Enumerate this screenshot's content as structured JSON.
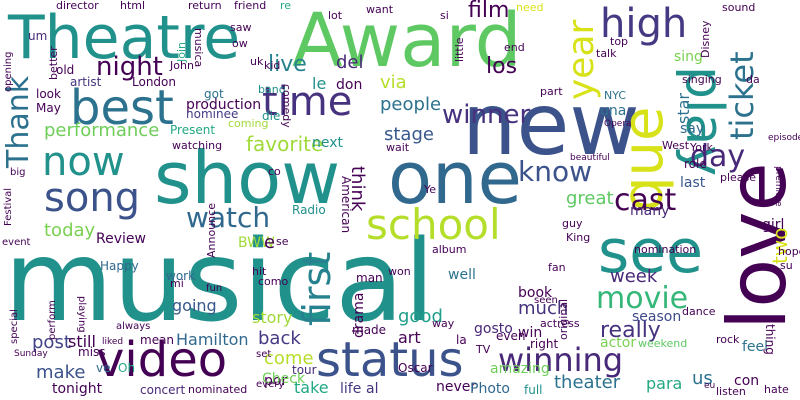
{
  "words": [
    {
      "text": "musical",
      "color": "#21918c"
    },
    {
      "text": "Award",
      "color": "#5ec962"
    },
    {
      "text": "Theatre",
      "color": "#21918c"
    },
    {
      "text": "new",
      "color": "#3b528b"
    },
    {
      "text": "show",
      "color": "#21918c"
    },
    {
      "text": "one",
      "color": "#31688e"
    },
    {
      "text": "love",
      "color": "#440154"
    },
    {
      "text": "best",
      "color": "#2c728e"
    },
    {
      "text": "status",
      "color": "#3b528b"
    },
    {
      "text": "video",
      "color": "#440154"
    },
    {
      "text": "see",
      "color": "#21918c"
    },
    {
      "text": "que",
      "color": "#d8e219"
    },
    {
      "text": "play",
      "color": "#21918c"
    },
    {
      "text": "school",
      "color": "#b5de2b"
    },
    {
      "text": "song",
      "color": "#3b528b"
    },
    {
      "text": "now",
      "color": "#21918c"
    },
    {
      "text": "time",
      "color": "#46327e"
    },
    {
      "text": "first",
      "color": "#26828e"
    },
    {
      "text": "watch",
      "color": "#31688e"
    },
    {
      "text": "high",
      "color": "#443983"
    },
    {
      "text": "day",
      "color": "#482878"
    },
    {
      "text": "ticket",
      "color": "#2c728e"
    },
    {
      "text": "year",
      "color": "#d8e219"
    },
    {
      "text": "winning",
      "color": "#482878"
    },
    {
      "text": "movie",
      "color": "#35b779"
    },
    {
      "text": "know",
      "color": "#3b528b"
    },
    {
      "text": "cast",
      "color": "#440154"
    },
    {
      "text": "Thank",
      "color": "#2c728e"
    },
    {
      "text": "winner",
      "color": "#46327e"
    },
    {
      "text": "night",
      "color": "#440154"
    },
    {
      "text": "performance",
      "color": "#6ece58"
    },
    {
      "text": "favorite",
      "color": "#a0da39"
    },
    {
      "text": "live",
      "color": "#26828e"
    },
    {
      "text": "people",
      "color": "#2c728e"
    },
    {
      "text": "stage",
      "color": "#38588c"
    },
    {
      "text": "film",
      "color": "#440154"
    },
    {
      "text": "los",
      "color": "#440154"
    },
    {
      "text": "via",
      "color": "#b5de2b"
    },
    {
      "text": "really",
      "color": "#46327e"
    },
    {
      "text": "theater",
      "color": "#2c728e"
    },
    {
      "text": "us",
      "color": "#2c728e"
    },
    {
      "text": "Hamilton",
      "color": "#31688e"
    },
    {
      "text": "today",
      "color": "#7ad151"
    },
    {
      "text": "great",
      "color": "#5ec962"
    },
    {
      "text": "post",
      "color": "#414487"
    },
    {
      "text": "still",
      "color": "#440154"
    },
    {
      "text": "come",
      "color": "#b5de2b"
    },
    {
      "text": "make",
      "color": "#3b528b"
    },
    {
      "text": "two",
      "color": "#d8e219"
    },
    {
      "text": "week",
      "color": "#482878"
    },
    {
      "text": "good",
      "color": "#1f9e89"
    },
    {
      "text": "much",
      "color": "#46327e"
    },
    {
      "text": "back",
      "color": "#443983"
    },
    {
      "text": "think",
      "color": "#440154"
    },
    {
      "text": "production",
      "color": "#440154"
    },
    {
      "text": "Review",
      "color": "#440154"
    },
    {
      "text": "tonight",
      "color": "#440154"
    },
    {
      "text": "amazing",
      "color": "#6ece58"
    },
    {
      "text": "take",
      "color": "#22a884"
    },
    {
      "text": "life",
      "color": "#443983"
    },
    {
      "text": "para",
      "color": "#22a884"
    },
    {
      "text": "story",
      "color": "#a0da39"
    },
    {
      "text": "going",
      "color": "#38588c"
    },
    {
      "text": "art",
      "color": "#440154"
    },
    {
      "text": "book",
      "color": "#440154"
    },
    {
      "text": "drama",
      "color": "#440154"
    },
    {
      "text": "del",
      "color": "#482878"
    },
    {
      "text": "le",
      "color": "#21918c"
    },
    {
      "text": "don",
      "color": "#440154"
    },
    {
      "text": "star",
      "color": "#2c728e"
    },
    {
      "text": "say",
      "color": "#31688e"
    },
    {
      "text": "una",
      "color": "#2c728e"
    },
    {
      "text": "next",
      "color": "#21918c"
    },
    {
      "text": "actor",
      "color": "#7ad151"
    },
    {
      "text": "win",
      "color": "#440154"
    },
    {
      "text": "por",
      "color": "#440154"
    },
    {
      "text": "tour",
      "color": "#482878"
    },
    {
      "text": "al",
      "color": "#46327e"
    },
    {
      "text": "never",
      "color": "#440154"
    },
    {
      "text": "Photo",
      "color": "#31688e"
    },
    {
      "text": "con",
      "color": "#440154"
    },
    {
      "text": "season",
      "color": "#3e4989"
    },
    {
      "text": "work",
      "color": "#31688e"
    },
    {
      "text": "Happy",
      "color": "#31688e"
    },
    {
      "text": "BWW",
      "color": "#a0da39"
    },
    {
      "text": "Check",
      "color": "#6ece58"
    },
    {
      "text": "well",
      "color": "#2c728e"
    },
    {
      "text": "gosto",
      "color": "#482878"
    },
    {
      "text": "many",
      "color": "#482878"
    },
    {
      "text": "sing",
      "color": "#7ad151"
    },
    {
      "text": "last",
      "color": "#38588c"
    },
    {
      "text": "role",
      "color": "#440154"
    },
    {
      "text": "girl",
      "color": "#440154"
    },
    {
      "text": "feel",
      "color": "#2c728e"
    },
    {
      "text": "thing",
      "color": "#440154"
    },
    {
      "text": "full",
      "color": "#21918c"
    },
    {
      "text": "Oscar",
      "color": "#440154"
    },
    {
      "text": "right",
      "color": "#440154"
    },
    {
      "text": "mean",
      "color": "#440154"
    },
    {
      "text": "concert",
      "color": "#482878"
    },
    {
      "text": "every",
      "color": "#440154"
    },
    {
      "text": "Oh",
      "color": "#22a884"
    },
    {
      "text": "ve",
      "color": "#31688e"
    },
    {
      "text": "miss",
      "color": "#440154"
    },
    {
      "text": "even",
      "color": "#440154"
    },
    {
      "text": "la",
      "color": "#440154"
    },
    {
      "text": "made",
      "color": "#440154"
    },
    {
      "text": "American",
      "color": "#440154"
    },
    {
      "text": "man",
      "color": "#440154"
    },
    {
      "text": "Radio",
      "color": "#21918c"
    },
    {
      "text": "got",
      "color": "#2c728e"
    },
    {
      "text": "nominee",
      "color": "#443983"
    },
    {
      "text": "Present",
      "color": "#22a884"
    },
    {
      "text": "watching",
      "color": "#440154"
    },
    {
      "text": "coming",
      "color": "#a0da39"
    },
    {
      "text": "die",
      "color": "#21918c"
    },
    {
      "text": "band",
      "color": "#21918c"
    },
    {
      "text": "comedy",
      "color": "#440154"
    },
    {
      "text": "London",
      "color": "#440154"
    },
    {
      "text": "artist",
      "color": "#46327e"
    },
    {
      "text": "May",
      "color": "#440154"
    },
    {
      "text": "look",
      "color": "#440154"
    },
    {
      "text": "better",
      "color": "#440154"
    },
    {
      "text": "old",
      "color": "#440154"
    },
    {
      "text": "um",
      "color": "#482878"
    },
    {
      "text": "director",
      "color": "#440154"
    },
    {
      "text": "html",
      "color": "#440154"
    },
    {
      "text": "return",
      "color": "#440154"
    },
    {
      "text": "friend",
      "color": "#440154"
    },
    {
      "text": "re",
      "color": "#22a884"
    },
    {
      "text": "Join",
      "color": "#22a884"
    },
    {
      "text": "musica",
      "color": "#440154"
    },
    {
      "text": "saw",
      "color": "#440154"
    },
    {
      "text": "ow",
      "color": "#440154"
    },
    {
      "text": "John",
      "color": "#440154"
    },
    {
      "text": "uk",
      "color": "#440154"
    },
    {
      "text": "kid",
      "color": "#440154"
    },
    {
      "text": "lot",
      "color": "#440154"
    },
    {
      "text": "want",
      "color": "#440154"
    },
    {
      "text": "si",
      "color": "#440154"
    },
    {
      "text": "need",
      "color": "#d8e219"
    },
    {
      "text": "end",
      "color": "#440154"
    },
    {
      "text": "little",
      "color": "#440154"
    },
    {
      "text": "talk",
      "color": "#440154"
    },
    {
      "text": "top",
      "color": "#440154"
    },
    {
      "text": "Disney",
      "color": "#440154"
    },
    {
      "text": "part",
      "color": "#440154"
    },
    {
      "text": "NYC",
      "color": "#2c728e"
    },
    {
      "text": "singing",
      "color": "#440154"
    },
    {
      "text": "da",
      "color": "#440154"
    },
    {
      "text": "sound",
      "color": "#440154"
    },
    {
      "text": "episode",
      "color": "#440154"
    },
    {
      "text": "Opera",
      "color": "#440154"
    },
    {
      "text": "West",
      "color": "#440154"
    },
    {
      "text": "York",
      "color": "#440154"
    },
    {
      "text": "beautiful",
      "color": "#440154"
    },
    {
      "text": "please",
      "color": "#440154"
    },
    {
      "text": "premiere",
      "color": "#440154"
    },
    {
      "text": "hope",
      "color": "#440154"
    },
    {
      "text": "su",
      "color": "#440154"
    },
    {
      "text": "dance",
      "color": "#440154"
    },
    {
      "text": "rock",
      "color": "#440154"
    },
    {
      "text": "eu",
      "color": "#440154"
    },
    {
      "text": "listen",
      "color": "#440154"
    },
    {
      "text": "hate",
      "color": "#440154"
    },
    {
      "text": "weekend",
      "color": "#5ec962"
    },
    {
      "text": "original",
      "color": "#440154"
    },
    {
      "text": "actress",
      "color": "#440154"
    },
    {
      "text": "seen",
      "color": "#440154"
    },
    {
      "text": "guy",
      "color": "#440154"
    },
    {
      "text": "King",
      "color": "#440154"
    },
    {
      "text": "nomination",
      "color": "#440154"
    },
    {
      "text": "fan",
      "color": "#440154"
    },
    {
      "text": "album",
      "color": "#440154"
    },
    {
      "text": "won",
      "color": "#440154"
    },
    {
      "text": "way",
      "color": "#440154"
    },
    {
      "text": "TV",
      "color": "#440154"
    },
    {
      "text": "Ye",
      "color": "#440154"
    },
    {
      "text": "wait",
      "color": "#440154"
    },
    {
      "text": "como",
      "color": "#440154"
    },
    {
      "text": "se",
      "color": "#440154"
    },
    {
      "text": "co",
      "color": "#440154"
    },
    {
      "text": "hit",
      "color": "#440154"
    },
    {
      "text": "fun",
      "color": "#440154"
    },
    {
      "text": "mi",
      "color": "#440154"
    },
    {
      "text": "set",
      "color": "#440154"
    },
    {
      "text": "liked",
      "color": "#440154"
    },
    {
      "text": "Announce",
      "color": "#440154"
    },
    {
      "text": "nominated",
      "color": "#440154"
    },
    {
      "text": "Sunday",
      "color": "#440154"
    },
    {
      "text": "always",
      "color": "#440154"
    },
    {
      "text": "playing",
      "color": "#440154"
    },
    {
      "text": "perform",
      "color": "#440154"
    },
    {
      "text": "special",
      "color": "#440154"
    },
    {
      "text": "event",
      "color": "#440154"
    },
    {
      "text": "Festival",
      "color": "#440154"
    },
    {
      "text": "big",
      "color": "#440154"
    },
    {
      "text": "opening",
      "color": "#440154"
    },
    {
      "text": "e",
      "color": "#440154"
    }
  ]
}
